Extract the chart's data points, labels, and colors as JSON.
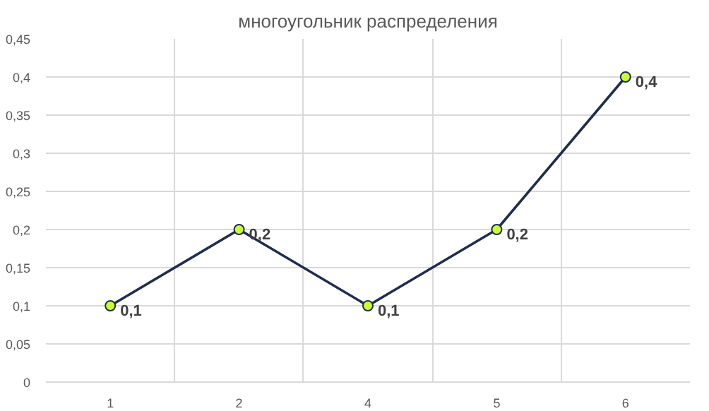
{
  "chart_data": {
    "type": "line",
    "title": "многоугольник распределения",
    "categories": [
      "1",
      "2",
      "4",
      "5",
      "6"
    ],
    "series": [
      {
        "color": "#1f2d4e",
        "values": [
          0.1,
          0.2,
          0.1,
          0.2,
          0.4
        ],
        "colors": [
          "#ccff33",
          "#ccff33",
          "#ccff33",
          "#ccff33",
          "#ccff33"
        ],
        "value_labels": [
          "0,1",
          "0,2",
          "0,1",
          "0,2",
          "0,4"
        ]
      }
    ],
    "ylim": [
      0,
      0.45
    ],
    "yticks": [
      0,
      {
        "value": 0.05,
        "label": "0,05"
      },
      {
        "value": 0.1,
        "label": "0,1"
      },
      {
        "value": 0.15,
        "label": "0,15"
      },
      {
        "value": 0.2,
        "label": "0,2"
      },
      {
        "value": 0.25,
        "label": "0,25"
      },
      {
        "value": 0.3,
        "label": "0,3"
      },
      {
        "value": 0.35,
        "label": "0,35"
      },
      {
        "value": 0.4,
        "label": "0,4"
      },
      {
        "value": 0.45,
        "label": "0,45"
      }
    ],
    "grid": true,
    "marker": "circle",
    "line_style": "solid"
  }
}
